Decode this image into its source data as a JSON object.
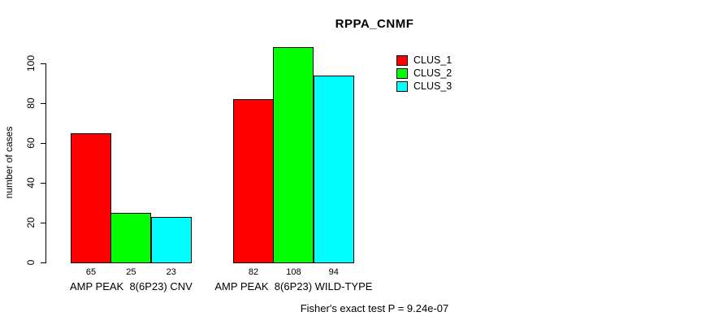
{
  "chart_data": {
    "type": "bar",
    "title": "RPPA_CNMF",
    "xlabel": "",
    "ylabel": "number of cases",
    "categories": [
      "AMP PEAK  8(6P23) CNV",
      "AMP PEAK  8(6P23) WILD-TYPE"
    ],
    "series": [
      {
        "name": "CLUS_1",
        "color": "#ff0000",
        "values": [
          65,
          82
        ]
      },
      {
        "name": "CLUS_2",
        "color": "#00ff00",
        "values": [
          25,
          108
        ]
      },
      {
        "name": "CLUS_3",
        "color": "#00ffff",
        "values": [
          23,
          94
        ]
      }
    ],
    "yticks": [
      0,
      20,
      40,
      60,
      80,
      100
    ],
    "ylim": [
      0,
      108
    ],
    "grid": false,
    "bar_value_labels": true,
    "legend_position": "top-right",
    "bar_border_color": "#000000",
    "annotation": "Fisher's exact test P = 9.24e-07"
  }
}
